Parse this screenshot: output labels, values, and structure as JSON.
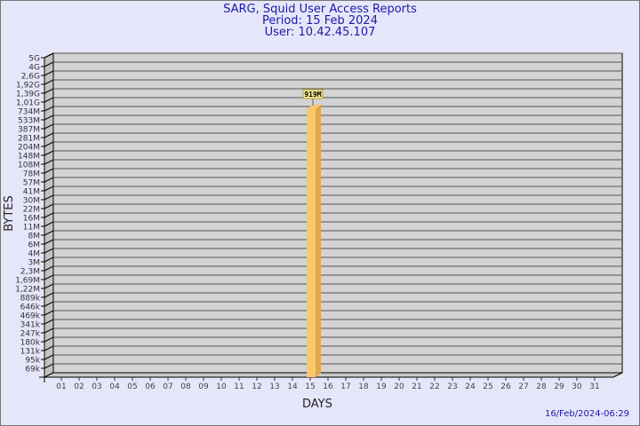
{
  "title": [
    "SARG, Squid User Access Reports",
    "Period: 15 Feb 2024",
    "User: 10.42.45.107"
  ],
  "footer_timestamp": "16/Feb/2024-06:29",
  "chart_data": {
    "type": "bar",
    "style": "3d",
    "xlabel": "DAYS",
    "ylabel": "BYTES",
    "yscale": "log",
    "grid": true,
    "categories": [
      "01",
      "02",
      "03",
      "04",
      "05",
      "06",
      "07",
      "08",
      "09",
      "10",
      "11",
      "12",
      "13",
      "14",
      "15",
      "16",
      "17",
      "18",
      "19",
      "20",
      "21",
      "22",
      "23",
      "24",
      "25",
      "26",
      "27",
      "28",
      "29",
      "30",
      "31"
    ],
    "yticks": [
      "5G",
      "4G",
      "2,6G",
      "1,92G",
      "1,39G",
      "1,01G",
      "734M",
      "533M",
      "387M",
      "281M",
      "204M",
      "148M",
      "108M",
      "78M",
      "57M",
      "41M",
      "30M",
      "22M",
      "16M",
      "11M",
      "8M",
      "6M",
      "4M",
      "3M",
      "2,3M",
      "1,69M",
      "1,22M",
      "889k",
      "646k",
      "469k",
      "341k",
      "247k",
      "180k",
      "131k",
      "95k",
      "69k"
    ],
    "bars": [
      {
        "category": "15",
        "value": "919M",
        "bytes": 919000000
      }
    ],
    "colors": {
      "bar": "#fcc76a",
      "bar_side": "#e0a74c",
      "wall": "#d3d3d3",
      "background": "#e6e6fa",
      "label_bg": "#f5eb9a"
    }
  }
}
